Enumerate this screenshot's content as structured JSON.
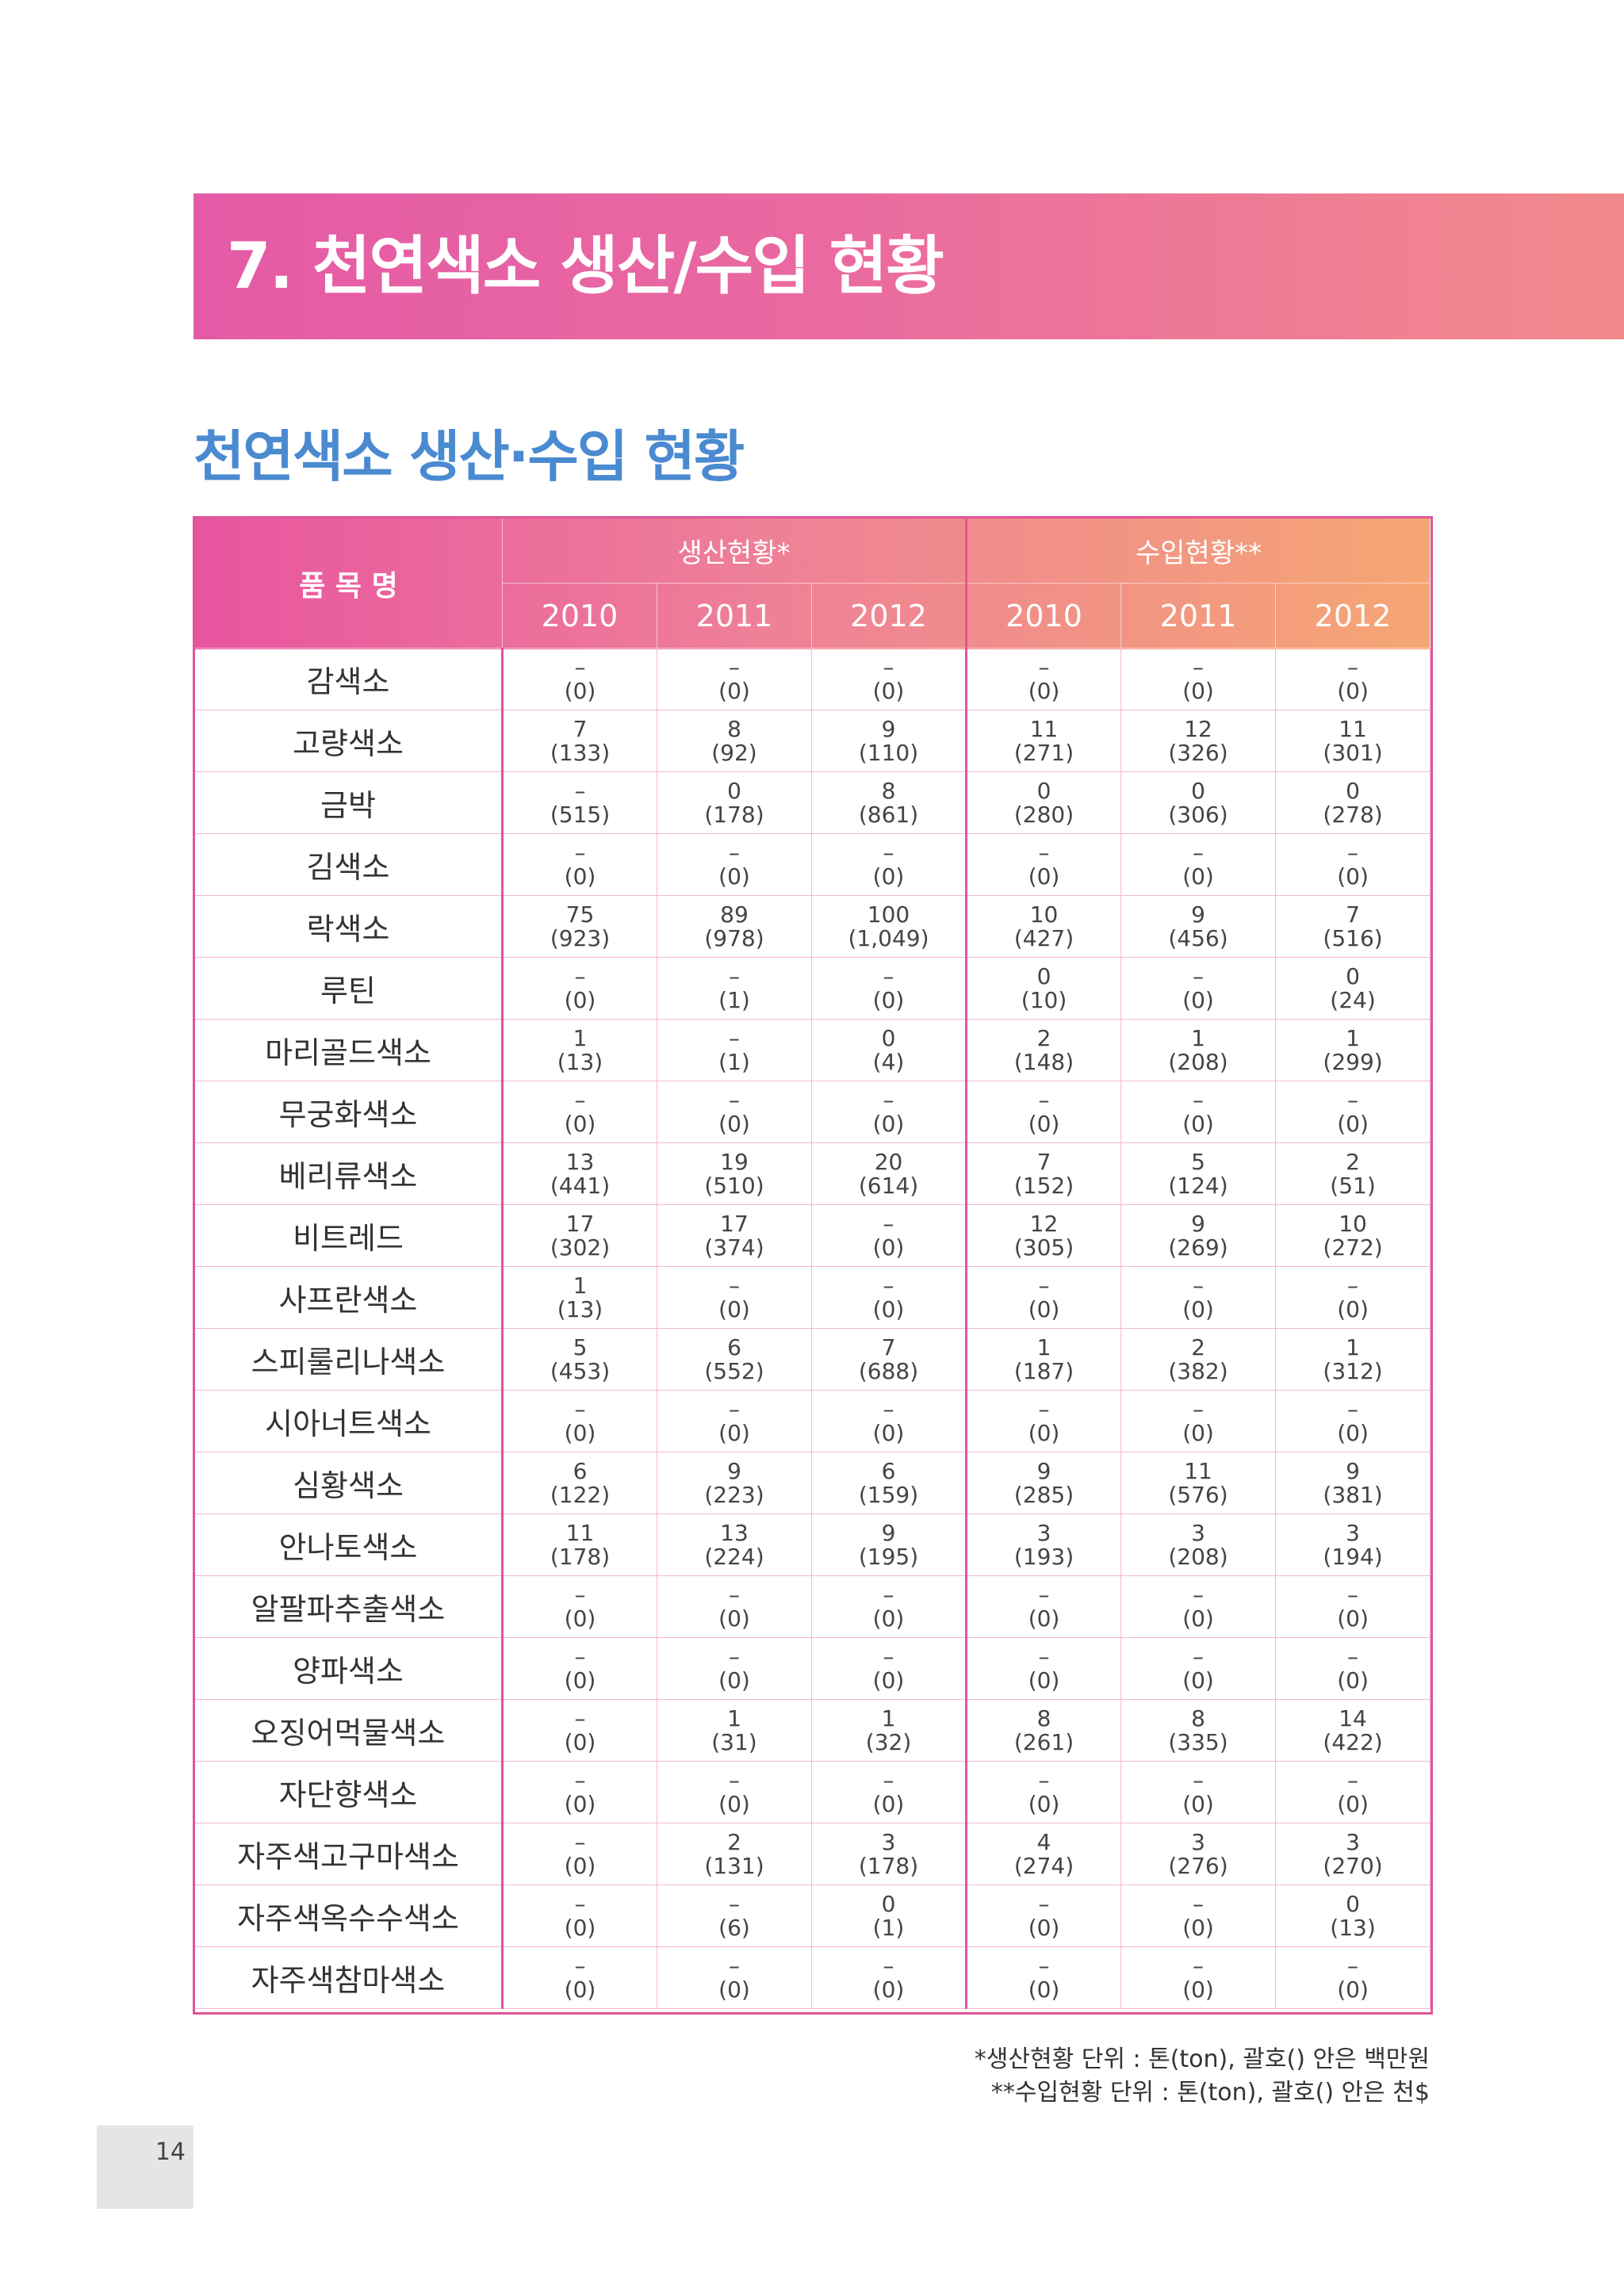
{
  "section_title": "7. 천연색소 생산/수입 현황",
  "heading": "천연색소 생산·수입 현황",
  "table": {
    "header": {
      "item": "품 목 명",
      "groups": [
        "생산현황*",
        "수입현황**"
      ],
      "years": [
        "2010",
        "2011",
        "2012",
        "2010",
        "2011",
        "2012"
      ]
    },
    "rows": [
      {
        "name": "감색소",
        "cells": [
          [
            "–",
            "(0)"
          ],
          [
            "–",
            "(0)"
          ],
          [
            "–",
            "(0)"
          ],
          [
            "–",
            "(0)"
          ],
          [
            "–",
            "(0)"
          ],
          [
            "–",
            "(0)"
          ]
        ]
      },
      {
        "name": "고량색소",
        "cells": [
          [
            "7",
            "(133)"
          ],
          [
            "8",
            "(92)"
          ],
          [
            "9",
            "(110)"
          ],
          [
            "11",
            "(271)"
          ],
          [
            "12",
            "(326)"
          ],
          [
            "11",
            "(301)"
          ]
        ]
      },
      {
        "name": "금박",
        "cells": [
          [
            "–",
            "(515)"
          ],
          [
            "0",
            "(178)"
          ],
          [
            "8",
            "(861)"
          ],
          [
            "0",
            "(280)"
          ],
          [
            "0",
            "(306)"
          ],
          [
            "0",
            "(278)"
          ]
        ]
      },
      {
        "name": "김색소",
        "cells": [
          [
            "–",
            "(0)"
          ],
          [
            "–",
            "(0)"
          ],
          [
            "–",
            "(0)"
          ],
          [
            "–",
            "(0)"
          ],
          [
            "–",
            "(0)"
          ],
          [
            "–",
            "(0)"
          ]
        ]
      },
      {
        "name": "락색소",
        "cells": [
          [
            "75",
            "(923)"
          ],
          [
            "89",
            "(978)"
          ],
          [
            "100",
            "(1,049)"
          ],
          [
            "10",
            "(427)"
          ],
          [
            "9",
            "(456)"
          ],
          [
            "7",
            "(516)"
          ]
        ]
      },
      {
        "name": "루틴",
        "cells": [
          [
            "–",
            "(0)"
          ],
          [
            "–",
            "(1)"
          ],
          [
            "–",
            "(0)"
          ],
          [
            "0",
            "(10)"
          ],
          [
            "–",
            "(0)"
          ],
          [
            "0",
            "(24)"
          ]
        ]
      },
      {
        "name": "마리골드색소",
        "cells": [
          [
            "1",
            "(13)"
          ],
          [
            "–",
            "(1)"
          ],
          [
            "0",
            "(4)"
          ],
          [
            "2",
            "(148)"
          ],
          [
            "1",
            "(208)"
          ],
          [
            "1",
            "(299)"
          ]
        ]
      },
      {
        "name": "무궁화색소",
        "cells": [
          [
            "–",
            "(0)"
          ],
          [
            "–",
            "(0)"
          ],
          [
            "–",
            "(0)"
          ],
          [
            "–",
            "(0)"
          ],
          [
            "–",
            "(0)"
          ],
          [
            "–",
            "(0)"
          ]
        ]
      },
      {
        "name": "베리류색소",
        "cells": [
          [
            "13",
            "(441)"
          ],
          [
            "19",
            "(510)"
          ],
          [
            "20",
            "(614)"
          ],
          [
            "7",
            "(152)"
          ],
          [
            "5",
            "(124)"
          ],
          [
            "2",
            "(51)"
          ]
        ]
      },
      {
        "name": "비트레드",
        "cells": [
          [
            "17",
            "(302)"
          ],
          [
            "17",
            "(374)"
          ],
          [
            "–",
            "(0)"
          ],
          [
            "12",
            "(305)"
          ],
          [
            "9",
            "(269)"
          ],
          [
            "10",
            "(272)"
          ]
        ]
      },
      {
        "name": "사프란색소",
        "cells": [
          [
            "1",
            "(13)"
          ],
          [
            "–",
            "(0)"
          ],
          [
            "–",
            "(0)"
          ],
          [
            "–",
            "(0)"
          ],
          [
            "–",
            "(0)"
          ],
          [
            "–",
            "(0)"
          ]
        ]
      },
      {
        "name": "스피룰리나색소",
        "cells": [
          [
            "5",
            "(453)"
          ],
          [
            "6",
            "(552)"
          ],
          [
            "7",
            "(688)"
          ],
          [
            "1",
            "(187)"
          ],
          [
            "2",
            "(382)"
          ],
          [
            "1",
            "(312)"
          ]
        ]
      },
      {
        "name": "시아너트색소",
        "cells": [
          [
            "–",
            "(0)"
          ],
          [
            "–",
            "(0)"
          ],
          [
            "–",
            "(0)"
          ],
          [
            "–",
            "(0)"
          ],
          [
            "–",
            "(0)"
          ],
          [
            "–",
            "(0)"
          ]
        ]
      },
      {
        "name": "심황색소",
        "cells": [
          [
            "6",
            "(122)"
          ],
          [
            "9",
            "(223)"
          ],
          [
            "6",
            "(159)"
          ],
          [
            "9",
            "(285)"
          ],
          [
            "11",
            "(576)"
          ],
          [
            "9",
            "(381)"
          ]
        ]
      },
      {
        "name": "안나토색소",
        "cells": [
          [
            "11",
            "(178)"
          ],
          [
            "13",
            "(224)"
          ],
          [
            "9",
            "(195)"
          ],
          [
            "3",
            "(193)"
          ],
          [
            "3",
            "(208)"
          ],
          [
            "3",
            "(194)"
          ]
        ]
      },
      {
        "name": "알팔파추출색소",
        "cells": [
          [
            "–",
            "(0)"
          ],
          [
            "–",
            "(0)"
          ],
          [
            "–",
            "(0)"
          ],
          [
            "–",
            "(0)"
          ],
          [
            "–",
            "(0)"
          ],
          [
            "–",
            "(0)"
          ]
        ]
      },
      {
        "name": "양파색소",
        "cells": [
          [
            "–",
            "(0)"
          ],
          [
            "–",
            "(0)"
          ],
          [
            "–",
            "(0)"
          ],
          [
            "–",
            "(0)"
          ],
          [
            "–",
            "(0)"
          ],
          [
            "–",
            "(0)"
          ]
        ]
      },
      {
        "name": "오징어먹물색소",
        "cells": [
          [
            "–",
            "(0)"
          ],
          [
            "1",
            "(31)"
          ],
          [
            "1",
            "(32)"
          ],
          [
            "8",
            "(261)"
          ],
          [
            "8",
            "(335)"
          ],
          [
            "14",
            "(422)"
          ]
        ]
      },
      {
        "name": "자단향색소",
        "cells": [
          [
            "–",
            "(0)"
          ],
          [
            "–",
            "(0)"
          ],
          [
            "–",
            "(0)"
          ],
          [
            "–",
            "(0)"
          ],
          [
            "–",
            "(0)"
          ],
          [
            "–",
            "(0)"
          ]
        ]
      },
      {
        "name": "자주색고구마색소",
        "cells": [
          [
            "–",
            "(0)"
          ],
          [
            "2",
            "(131)"
          ],
          [
            "3",
            "(178)"
          ],
          [
            "4",
            "(274)"
          ],
          [
            "3",
            "(276)"
          ],
          [
            "3",
            "(270)"
          ]
        ]
      },
      {
        "name": "자주색옥수수색소",
        "cells": [
          [
            "–",
            "(0)"
          ],
          [
            "–",
            "(6)"
          ],
          [
            "0",
            "(1)"
          ],
          [
            "–",
            "(0)"
          ],
          [
            "–",
            "(0)"
          ],
          [
            "0",
            "(13)"
          ]
        ]
      },
      {
        "name": "자주색참마색소",
        "cells": [
          [
            "–",
            "(0)"
          ],
          [
            "–",
            "(0)"
          ],
          [
            "–",
            "(0)"
          ],
          [
            "–",
            "(0)"
          ],
          [
            "–",
            "(0)"
          ],
          [
            "–",
            "(0)"
          ]
        ]
      }
    ]
  },
  "notes": [
    "*생산현황 단위 : 톤(ton), 괄호() 안은 백만원",
    "**수입현황 단위 : 톤(ton), 괄호() 안은 천$"
  ],
  "page_number": "14"
}
